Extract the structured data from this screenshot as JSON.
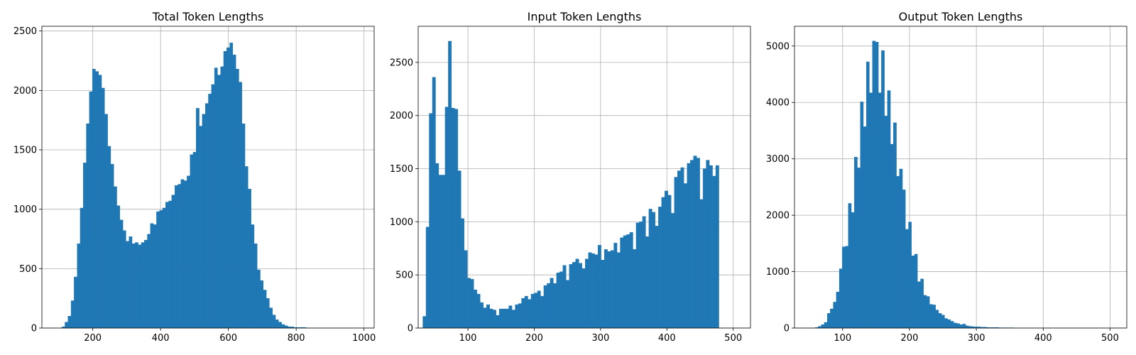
{
  "chart_data": [
    {
      "type": "bar",
      "title": "Total Token Lengths",
      "xlabel": "",
      "ylabel": "",
      "xlim": [
        50,
        1030
      ],
      "ylim": [
        0,
        2540
      ],
      "xticks": [
        200,
        400,
        600,
        800,
        1000
      ],
      "yticks": [
        0,
        500,
        1000,
        1500,
        2000,
        2500
      ],
      "grid": true,
      "bin_start": 100,
      "bin_width": 9,
      "values": [
        0,
        10,
        50,
        100,
        230,
        430,
        710,
        1010,
        1390,
        1720,
        1990,
        2180,
        2160,
        2130,
        2020,
        1800,
        1530,
        1380,
        1190,
        1030,
        910,
        820,
        730,
        770,
        710,
        720,
        700,
        720,
        740,
        790,
        880,
        870,
        980,
        990,
        1010,
        1060,
        1070,
        1120,
        1200,
        1210,
        1250,
        1240,
        1280,
        1460,
        1480,
        1850,
        1700,
        1800,
        1890,
        1970,
        2050,
        2190,
        2130,
        2200,
        2330,
        2360,
        2400,
        2300,
        2180,
        2070,
        1720,
        1360,
        1170,
        870,
        710,
        490,
        400,
        320,
        250,
        170,
        110,
        70,
        50,
        30,
        20,
        10,
        10,
        5,
        5,
        5,
        5,
        0,
        0,
        0,
        0,
        0,
        0,
        0,
        0,
        0,
        0,
        0,
        0,
        0,
        0,
        0,
        0,
        0,
        0,
        0
      ]
    },
    {
      "type": "bar",
      "title": "Input Token Lengths",
      "xlabel": "",
      "ylabel": "",
      "xlim": [
        25,
        526
      ],
      "ylim": [
        0,
        2840
      ],
      "xticks": [
        100,
        200,
        300,
        400,
        500
      ],
      "yticks": [
        0,
        500,
        1000,
        1500,
        2000,
        2500
      ],
      "grid": true,
      "bin_start": 32,
      "bin_width": 4.8,
      "values": [
        110,
        950,
        2020,
        2360,
        1550,
        1440,
        1440,
        2080,
        2700,
        2070,
        2060,
        1480,
        1030,
        730,
        470,
        460,
        360,
        320,
        240,
        190,
        220,
        180,
        170,
        120,
        180,
        180,
        180,
        210,
        170,
        220,
        230,
        280,
        300,
        270,
        320,
        330,
        350,
        300,
        400,
        420,
        470,
        420,
        520,
        530,
        590,
        450,
        600,
        620,
        650,
        610,
        560,
        650,
        710,
        700,
        690,
        780,
        640,
        740,
        720,
        730,
        800,
        710,
        850,
        870,
        880,
        900,
        740,
        990,
        1000,
        1050,
        860,
        1120,
        1090,
        960,
        1140,
        1230,
        1290,
        1250,
        1080,
        1420,
        1480,
        1510,
        1360,
        1550,
        1580,
        1620,
        1600,
        1210,
        1500,
        1580,
        1530,
        1430,
        1530
      ]
    },
    {
      "type": "bar",
      "title": "Output Token Lengths",
      "xlabel": "",
      "ylabel": "",
      "xlim": [
        28,
        525
      ],
      "ylim": [
        0,
        5350
      ],
      "xticks": [
        100,
        200,
        300,
        400,
        500
      ],
      "yticks": [
        0,
        1000,
        2000,
        3000,
        4000,
        5000
      ],
      "grid": true,
      "bin_start": 50,
      "bin_width": 4.5,
      "values": [
        0,
        0,
        10,
        30,
        60,
        100,
        260,
        340,
        460,
        640,
        1050,
        1440,
        1450,
        2210,
        2050,
        3030,
        2840,
        4010,
        3570,
        4720,
        4170,
        5090,
        5070,
        4170,
        4920,
        3760,
        4210,
        3260,
        3640,
        2690,
        2820,
        2450,
        1750,
        1880,
        1280,
        1310,
        820,
        870,
        580,
        560,
        420,
        410,
        320,
        260,
        230,
        170,
        150,
        120,
        90,
        80,
        60,
        70,
        40,
        30,
        25,
        20,
        20,
        15,
        15,
        10,
        10,
        10,
        10,
        5,
        5,
        5,
        5,
        5,
        0,
        0,
        0,
        0,
        0,
        0,
        0,
        0,
        0,
        0,
        0,
        0,
        0,
        0,
        0,
        0,
        0,
        0,
        0,
        0,
        0,
        0,
        0,
        0,
        0,
        0,
        0,
        0,
        0,
        0,
        0,
        0
      ]
    }
  ]
}
